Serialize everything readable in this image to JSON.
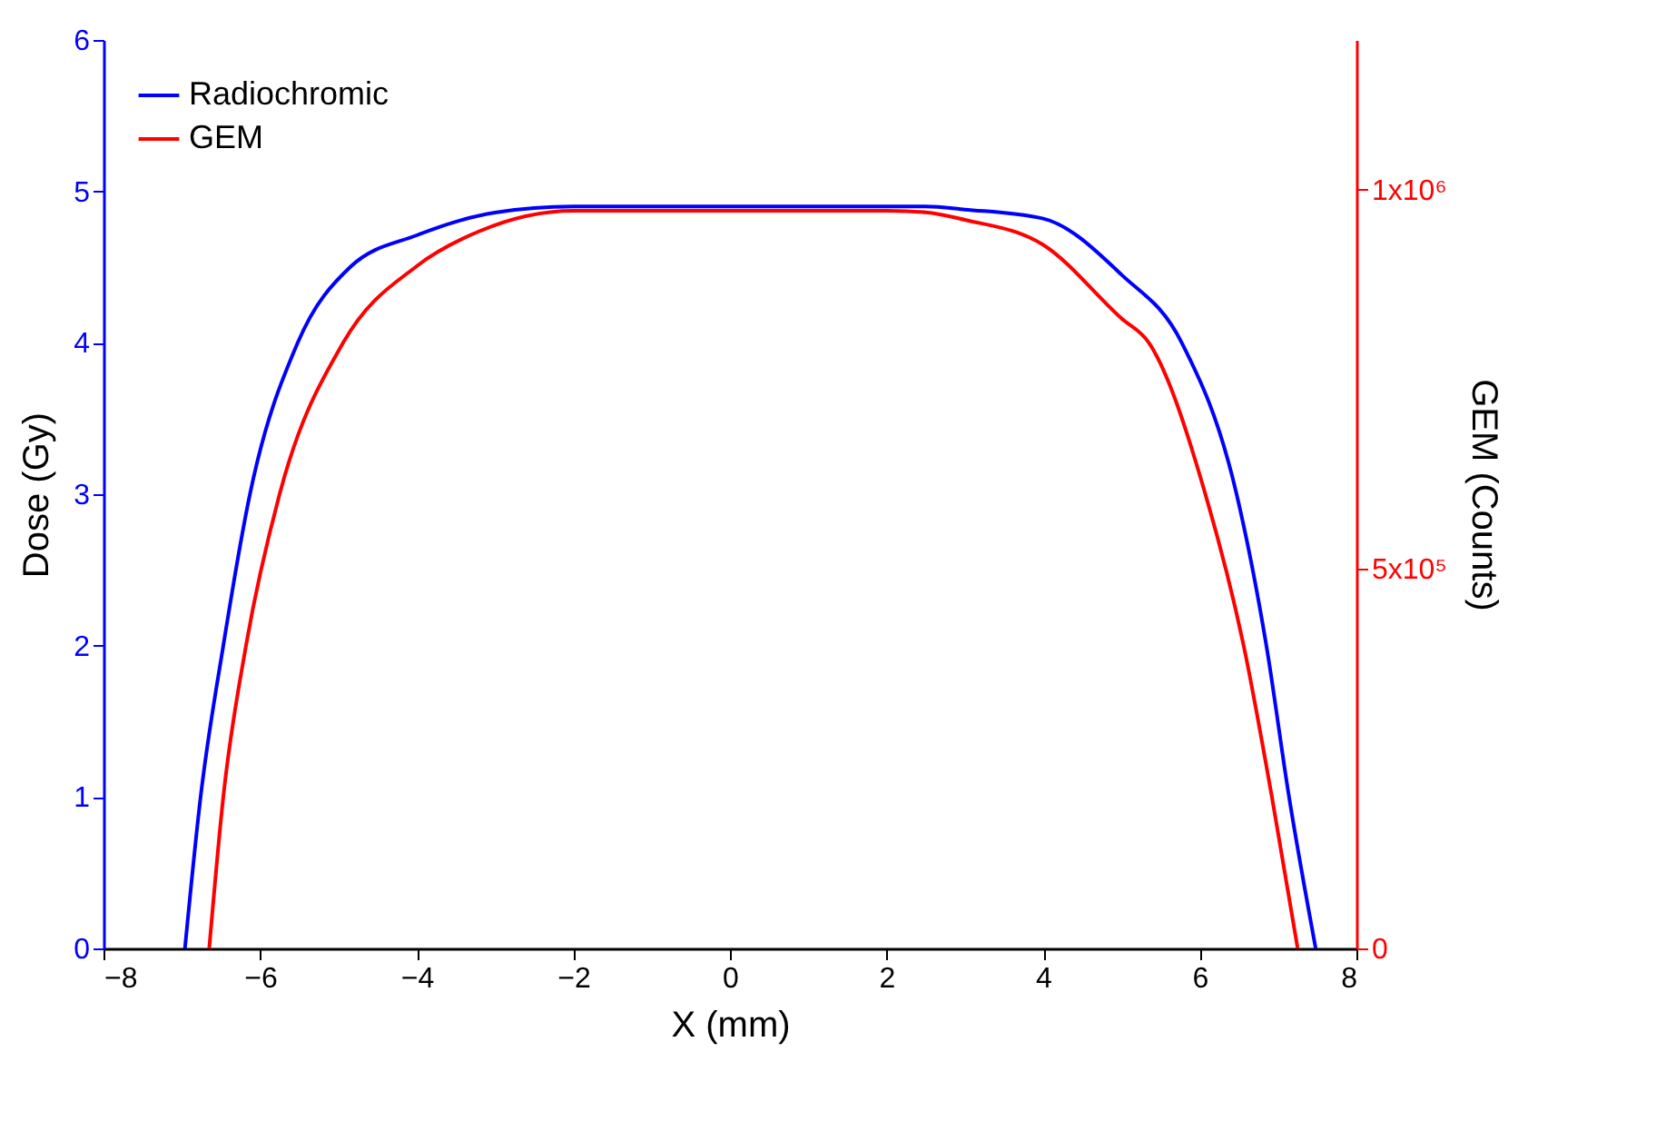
{
  "chart_data": {
    "type": "line",
    "xlabel": "X (mm)",
    "ylabel": "Dose (Gy)",
    "y2label": "GEM (Counts)",
    "xlim": [
      -8,
      8
    ],
    "xticks": [
      -8,
      -6,
      -4,
      -2,
      0,
      2,
      4,
      6,
      8
    ],
    "ylim": [
      0,
      6
    ],
    "yticks": [
      0,
      1,
      2,
      3,
      4,
      5,
      6
    ],
    "y2lim": [
      0,
      1197000
    ],
    "y2ticks": [
      0,
      {
        "value": 500000,
        "label": "5x10⁵"
      },
      {
        "value": 1000000,
        "label": "1x10⁶"
      }
    ],
    "legend": "top left",
    "grid": false,
    "marker": "none",
    "line_style": "solid",
    "series": [
      {
        "name": "Radiochromic",
        "color": "#0000ff",
        "x": [
          -6.96,
          -6.76,
          -6.47,
          -6.13,
          -5.52,
          -4.85,
          -4,
          -3,
          -2,
          0,
          2,
          2.5,
          3,
          4,
          5,
          5.77,
          6.47,
          6.85,
          7.14,
          7.48
        ],
        "values": [
          0,
          1,
          2,
          3,
          4,
          4.5,
          4.71,
          4.86,
          4.9,
          4.9,
          4.9,
          4.9,
          4.88,
          4.82,
          4.45,
          4,
          3,
          2,
          1,
          0
        ]
      },
      {
        "name": "GEM",
        "color": "#ff0000",
        "axis": "y2",
        "x": [
          -6.65,
          -6.47,
          -6.18,
          -5.75,
          -4.94,
          -4,
          -3.2,
          -2,
          0,
          2,
          2.5,
          3,
          4,
          5,
          5.35,
          6.07,
          6.56,
          6.92,
          7.25
        ],
        "values": [
          0,
          200000,
          399000,
          599000,
          798000,
          899000,
          945000,
          972000,
          972000,
          972000,
          970000,
          960000,
          927000,
          830000,
          798000,
          599000,
          399000,
          200000,
          0
        ]
      }
    ]
  }
}
